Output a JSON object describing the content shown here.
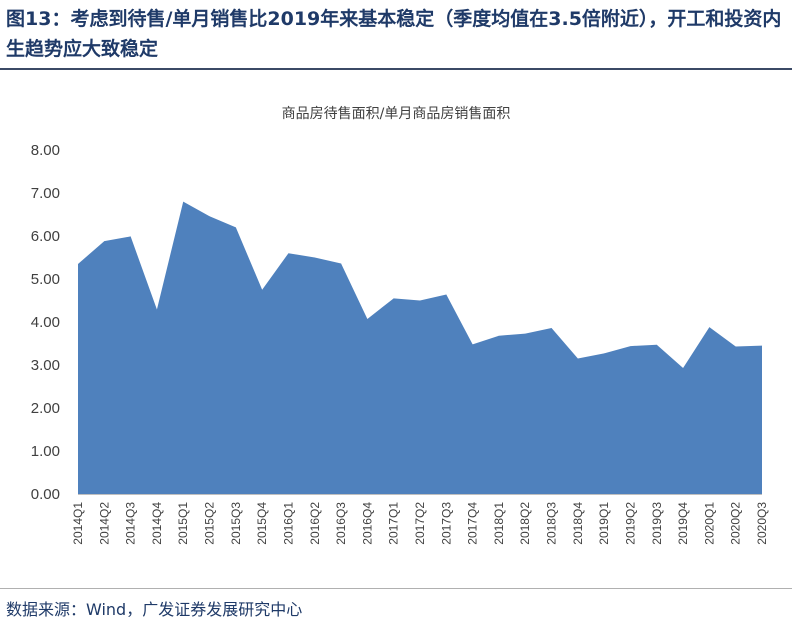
{
  "figure": {
    "title": "图13：考虑到待售/单月销售比2019年来基本稳定（季度均值在3.5倍附近），开工和投资内生趋势应大致稳定",
    "source": "数据来源：Wind，广发证券发展研究中心"
  },
  "colors": {
    "area": "#4f81bd",
    "title": "#1f3a68",
    "text": "#404040"
  },
  "chart_data": {
    "type": "area",
    "title": "商品房待售面积/单月商品房销售面积",
    "xlabel": "",
    "ylabel": "",
    "ylim": [
      0,
      8
    ],
    "yticks": [
      "0.00",
      "1.00",
      "2.00",
      "3.00",
      "4.00",
      "5.00",
      "6.00",
      "7.00",
      "8.00"
    ],
    "grid": false,
    "categories": [
      "2014Q1",
      "2014Q2",
      "2014Q3",
      "2014Q4",
      "2015Q1",
      "2015Q2",
      "2015Q3",
      "2015Q4",
      "2016Q1",
      "2016Q2",
      "2016Q3",
      "2016Q4",
      "2017Q1",
      "2017Q2",
      "2017Q3",
      "2017Q4",
      "2018Q1",
      "2018Q2",
      "2018Q3",
      "2018Q4",
      "2019Q1",
      "2019Q2",
      "2019Q3",
      "2019Q4",
      "2020Q1",
      "2020Q2",
      "2020Q3"
    ],
    "values": [
      5.35,
      5.88,
      5.99,
      4.29,
      6.8,
      6.46,
      6.2,
      4.75,
      5.6,
      5.5,
      5.36,
      4.07,
      4.55,
      4.5,
      4.64,
      3.48,
      3.68,
      3.73,
      3.86,
      3.15,
      3.27,
      3.44,
      3.47,
      2.93,
      3.88,
      3.43,
      3.45
    ]
  }
}
